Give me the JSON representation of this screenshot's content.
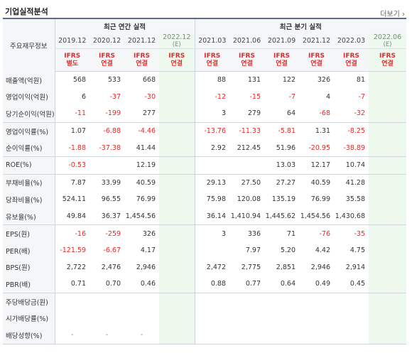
{
  "header": {
    "title": "기업실적분석",
    "more": "더보기 ›"
  },
  "table": {
    "corner_label": "주요재무정보",
    "annual_group": "최근 연간 실적",
    "quarter_group": "최근 분기 실적",
    "annual_periods": [
      "2019.12",
      "2020.12",
      "2021.12",
      "2022.12"
    ],
    "annual_est": "(E)",
    "quarter_periods": [
      "2021.03",
      "2021.06",
      "2021.09",
      "2021.12",
      "2022.03",
      "2022.06"
    ],
    "quarter_est": "(E)",
    "ifrs_annual": [
      [
        "IFRS",
        "별도"
      ],
      [
        "IFRS",
        "연결"
      ],
      [
        "IFRS",
        "연결"
      ],
      [
        "IFRS",
        "연결"
      ]
    ],
    "ifrs_quarter": [
      [
        "IFRS",
        "연결"
      ],
      [
        "IFRS",
        "연결"
      ],
      [
        "IFRS",
        "연결"
      ],
      [
        "IFRS",
        "연결"
      ],
      [
        "IFRS",
        "연결"
      ],
      [
        "IFRS",
        "연결"
      ]
    ],
    "rows": [
      {
        "label": "매출액(억원)",
        "annual": [
          "568",
          "533",
          "668",
          ""
        ],
        "quarter": [
          "88",
          "131",
          "122",
          "326",
          "81",
          ""
        ]
      },
      {
        "label": "영업이익(억원)",
        "annual": [
          "6",
          "-37",
          "-30",
          ""
        ],
        "quarter": [
          "-12",
          "-15",
          "-7",
          "4",
          "-7",
          ""
        ]
      },
      {
        "label": "당기순이익(억원)",
        "annual": [
          "-11",
          "-199",
          "277",
          ""
        ],
        "quarter": [
          "3",
          "279",
          "64",
          "-68",
          "-32",
          ""
        ]
      },
      {
        "label": "영업이익률(%)",
        "annual": [
          "1.07",
          "-6.88",
          "-4.46",
          ""
        ],
        "quarter": [
          "-13.76",
          "-11.33",
          "-5.81",
          "1.31",
          "-8.25",
          ""
        ]
      },
      {
        "label": "순이익률(%)",
        "annual": [
          "-1.88",
          "-37.38",
          "41.44",
          ""
        ],
        "quarter": [
          "2.92",
          "212.45",
          "51.96",
          "-20.95",
          "-38.89",
          ""
        ]
      },
      {
        "label": "ROE(%)",
        "annual": [
          "-0.53",
          "",
          "12.19",
          ""
        ],
        "quarter": [
          "",
          "",
          "13.03",
          "12.17",
          "10.74",
          ""
        ]
      },
      {
        "label": "부채비율(%)",
        "annual": [
          "7.87",
          "33.99",
          "40.59",
          ""
        ],
        "quarter": [
          "29.13",
          "27.50",
          "27.27",
          "40.59",
          "41.28",
          ""
        ]
      },
      {
        "label": "당좌비율(%)",
        "annual": [
          "524.11",
          "96.55",
          "76.99",
          ""
        ],
        "quarter": [
          "75.98",
          "120.08",
          "135.19",
          "76.99",
          "35.58",
          ""
        ]
      },
      {
        "label": "유보율(%)",
        "annual": [
          "49.84",
          "36.37",
          "1,454.56",
          ""
        ],
        "quarter": [
          "36.14",
          "1,410.94",
          "1,445.62",
          "1,454.56",
          "1,430.68",
          ""
        ]
      },
      {
        "label": "EPS(원)",
        "annual": [
          "-16",
          "-259",
          "326",
          ""
        ],
        "quarter": [
          "3",
          "336",
          "71",
          "-76",
          "-35",
          ""
        ]
      },
      {
        "label": "PER(배)",
        "annual": [
          "-121.59",
          "-6.67",
          "4.17",
          ""
        ],
        "quarter": [
          "",
          "7.97",
          "5.20",
          "4.42",
          "4.75",
          ""
        ]
      },
      {
        "label": "BPS(원)",
        "annual": [
          "2,722",
          "2,476",
          "2,946",
          ""
        ],
        "quarter": [
          "2,472",
          "2,775",
          "2,851",
          "2,946",
          "2,914",
          ""
        ]
      },
      {
        "label": "PBR(배)",
        "annual": [
          "0.71",
          "0.70",
          "0.46",
          ""
        ],
        "quarter": [
          "0.88",
          "0.77",
          "0.64",
          "0.49",
          "0.45",
          ""
        ]
      },
      {
        "label": "주당배당금(원)",
        "annual": [
          "",
          "",
          "",
          ""
        ],
        "quarter": [
          "",
          "",
          "",
          "",
          "",
          ""
        ]
      },
      {
        "label": "시가배당률(%)",
        "annual": [
          "",
          "",
          "",
          ""
        ],
        "quarter": [
          "",
          "",
          "",
          "",
          "",
          ""
        ]
      },
      {
        "label": "배당성향(%)",
        "annual": [
          "-",
          "-",
          "-",
          ""
        ],
        "quarter": [
          "",
          "",
          "",
          "",
          "",
          ""
        ]
      }
    ]
  }
}
